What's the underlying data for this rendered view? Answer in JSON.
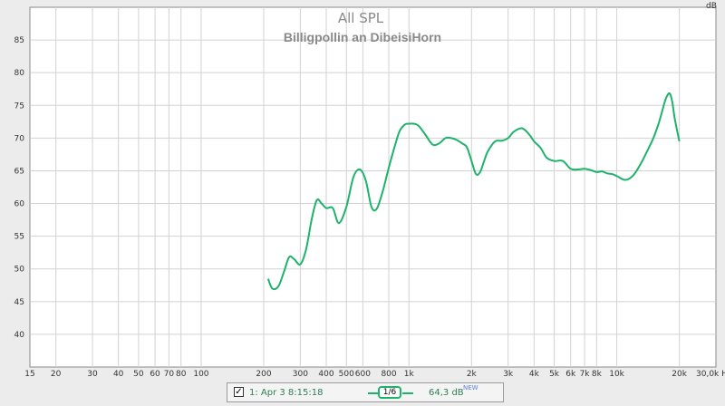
{
  "chart_data": {
    "type": "line",
    "title": "All SPL",
    "subtitle": "Billigpollin an DibeisiHorn",
    "ylabel": "dB",
    "xlabel": "Hz",
    "xscale": "log",
    "xlim": [
      15,
      30000
    ],
    "ylim": [
      35,
      90
    ],
    "grid": true,
    "x_ticks": [
      15,
      20,
      30,
      40,
      50,
      60,
      70,
      80,
      100,
      200,
      300,
      400,
      500,
      600,
      800,
      1000,
      2000,
      3000,
      4000,
      5000,
      6000,
      7000,
      8000,
      10000,
      20000,
      30000
    ],
    "x_tick_labels": [
      "15",
      "20",
      "30",
      "40",
      "50",
      "60",
      "70",
      "80",
      "100",
      "200",
      "300",
      "400",
      "500",
      "600",
      "800",
      "1k",
      "2k",
      "3k",
      "4k",
      "5k",
      "6k",
      "7k",
      "8k",
      "10k",
      "20k",
      "30,0k Hz"
    ],
    "y_ticks": [
      40,
      45,
      50,
      55,
      60,
      65,
      70,
      75,
      80,
      85
    ],
    "y_tick_labels": [
      "40",
      "45",
      "50",
      "55",
      "60",
      "65",
      "70",
      "75",
      "80",
      "85"
    ],
    "series": [
      {
        "name": "1: Apr 3 8:15:18",
        "color": "#1db36b",
        "x": [
          210,
          220,
          235,
          250,
          265,
          280,
          300,
          320,
          340,
          360,
          380,
          400,
          430,
          460,
          500,
          540,
          580,
          620,
          660,
          700,
          750,
          800,
          850,
          900,
          950,
          1000,
          1100,
          1200,
          1300,
          1400,
          1500,
          1600,
          1700,
          1800,
          1900,
          2000,
          2100,
          2200,
          2300,
          2400,
          2600,
          2800,
          3000,
          3200,
          3500,
          3800,
          4000,
          4300,
          4600,
          5000,
          5500,
          6000,
          6500,
          7000,
          7500,
          8000,
          8500,
          9000,
          9500,
          10000,
          11000,
          12000,
          13000,
          14000,
          15000,
          16000,
          17000,
          17500,
          18000,
          18500,
          19000,
          20000
        ],
        "values": [
          48.5,
          47.0,
          47.3,
          49.5,
          51.8,
          51.5,
          50.7,
          53.0,
          57.5,
          60.5,
          60.0,
          59.3,
          59.3,
          57.0,
          59.5,
          64.0,
          65.2,
          63.5,
          59.5,
          59.2,
          62.0,
          65.5,
          68.5,
          71.0,
          72.0,
          72.2,
          72.0,
          70.5,
          69.0,
          69.2,
          70.0,
          70.0,
          69.7,
          69.2,
          68.6,
          66.5,
          64.5,
          64.8,
          66.5,
          68.0,
          69.5,
          69.6,
          70.0,
          71.0,
          71.5,
          70.5,
          69.5,
          68.5,
          67.0,
          66.5,
          66.5,
          65.3,
          65.2,
          65.3,
          65.1,
          64.8,
          64.9,
          64.6,
          64.5,
          64.2,
          63.6,
          64.3,
          66.0,
          68.0,
          70.0,
          72.5,
          75.5,
          76.5,
          76.8,
          75.5,
          73.0,
          69.5
        ]
      }
    ]
  },
  "legend": {
    "checkbox_mark": "✓",
    "name": "1: Apr 3 8:15:18",
    "smoothing": "1/6",
    "value": "64,3 dB",
    "badge": "NEW"
  }
}
